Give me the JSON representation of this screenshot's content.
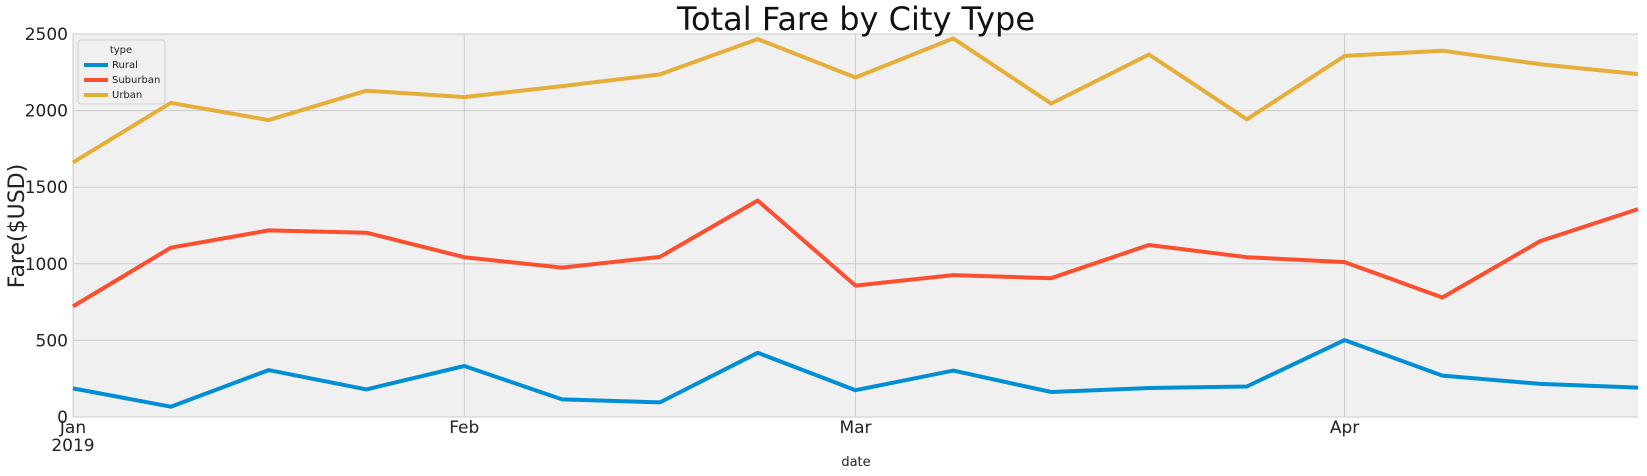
{
  "chart_data": {
    "type": "line",
    "title": "Total Fare by City Type",
    "xlabel": "date",
    "ylabel": "Fare($USD)",
    "ylim": [
      0,
      2500
    ],
    "y_ticks": [
      0,
      500,
      1000,
      1500,
      2000,
      2500
    ],
    "x_dates": [
      "2019-01-06",
      "2019-01-13",
      "2019-01-20",
      "2019-01-27",
      "2019-02-03",
      "2019-02-10",
      "2019-02-17",
      "2019-02-24",
      "2019-03-03",
      "2019-03-10",
      "2019-03-17",
      "2019-03-24",
      "2019-03-31",
      "2019-04-07",
      "2019-04-14",
      "2019-04-21",
      "2019-04-28"
    ],
    "x_tick_labels": [
      {
        "date": "2019-01-06",
        "label": "Jan",
        "sub": "2019"
      },
      {
        "date": "2019-02-03",
        "label": "Feb",
        "sub": ""
      },
      {
        "date": "2019-03-03",
        "label": "Mar",
        "sub": ""
      },
      {
        "date": "2019-04-07",
        "label": "Apr",
        "sub": ""
      }
    ],
    "grid": true,
    "legend_title": "type",
    "legend_position": "top-left",
    "series": [
      {
        "name": "Rural",
        "color": "#008fd5",
        "values": [
          187,
          67,
          306,
          180,
          333,
          115,
          95,
          419,
          175,
          303,
          163,
          189,
          199,
          502,
          270,
          216,
          192
        ]
      },
      {
        "name": "Suburban",
        "color": "#fc4f30",
        "values": [
          722,
          1105,
          1218,
          1203,
          1043,
          975,
          1045,
          1413,
          858,
          926,
          906,
          1123,
          1043,
          1011,
          780,
          1148,
          1357
        ]
      },
      {
        "name": "Urban",
        "color": "#e5ae38",
        "values": [
          1662,
          2051,
          1938,
          2130,
          2088,
          2160,
          2236,
          2467,
          2216,
          2471,
          2046,
          2366,
          1943,
          2357,
          2391,
          2303,
          2238
        ]
      }
    ]
  }
}
